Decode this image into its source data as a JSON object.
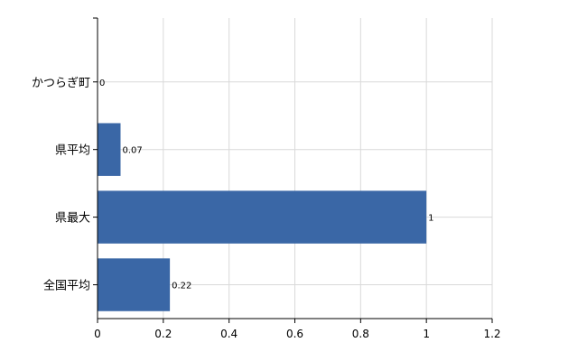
{
  "chart_data": {
    "type": "bar",
    "orientation": "horizontal",
    "categories": [
      "かつらぎ町",
      "県平均",
      "県最大",
      "全国平均"
    ],
    "values": [
      0,
      0.07,
      1,
      0.22
    ],
    "data_labels": [
      "0",
      "0.07",
      "1",
      "0.22"
    ],
    "x_ticks": [
      "0",
      "0.2",
      "0.4",
      "0.6",
      "0.8",
      "1",
      "1.2"
    ],
    "xlim": [
      0,
      1.2
    ],
    "title": "",
    "xlabel": "",
    "ylabel": "",
    "grid": true,
    "legend": "none",
    "bar_color": "#3a67a6",
    "grid_color": "#d9d9d9",
    "axis_color": "#000000"
  }
}
